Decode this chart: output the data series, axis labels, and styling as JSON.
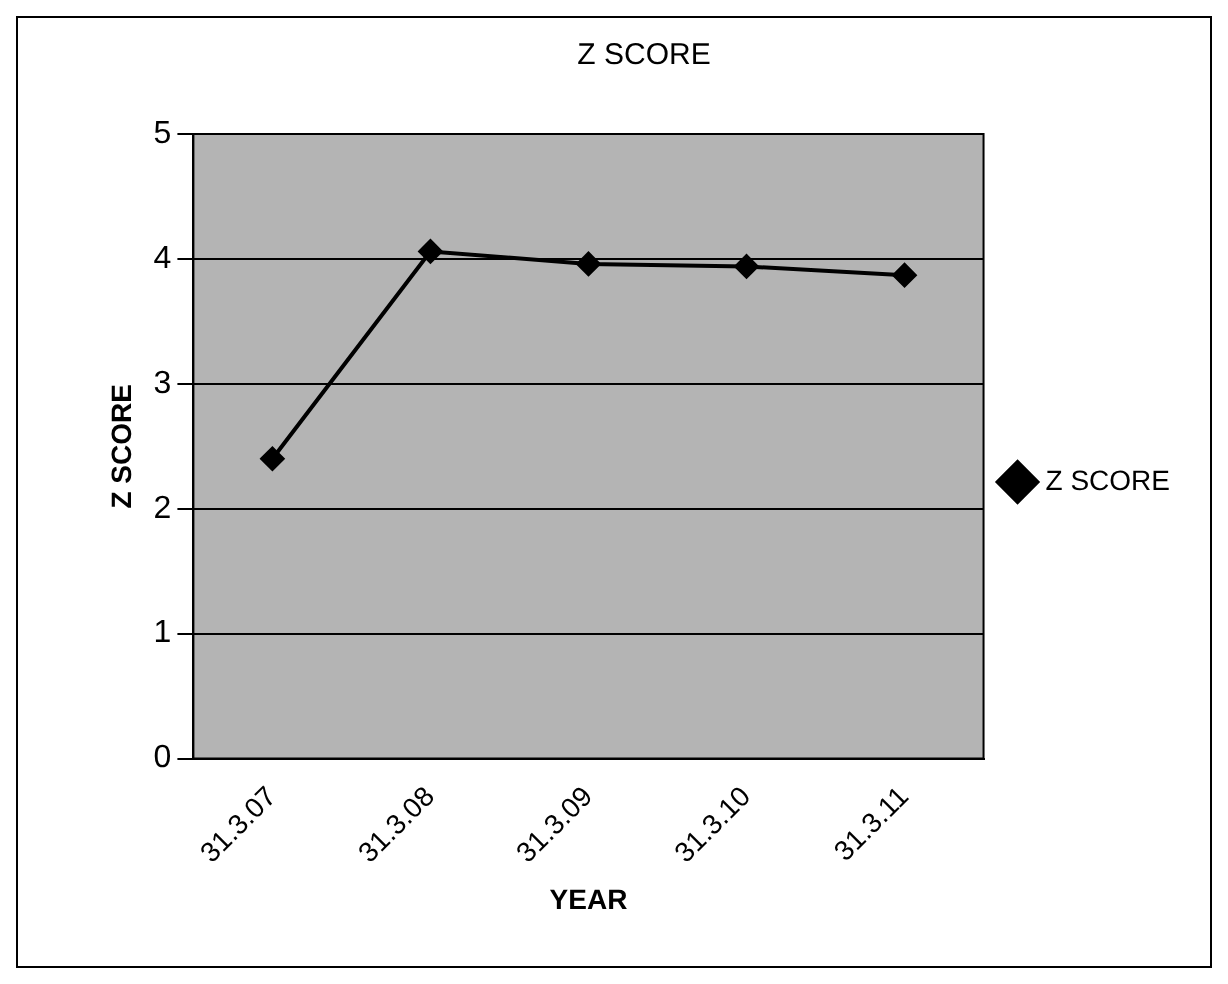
{
  "chart_data": {
    "type": "line",
    "title": "Z SCORE",
    "xlabel": "YEAR",
    "ylabel": "Z SCORE",
    "categories": [
      "31.3.07",
      "31.3.08",
      "31.3.09",
      "31.3.10",
      "31.3.11"
    ],
    "series": [
      {
        "name": "Z SCORE",
        "color": "#000000",
        "values": [
          2.4,
          4.06,
          3.96,
          3.94,
          3.87
        ]
      }
    ],
    "ylim": [
      0,
      5
    ],
    "yticks": [
      0,
      1,
      2,
      3,
      4,
      5
    ],
    "grid": "y",
    "legend": "right",
    "marker": "diamond"
  }
}
